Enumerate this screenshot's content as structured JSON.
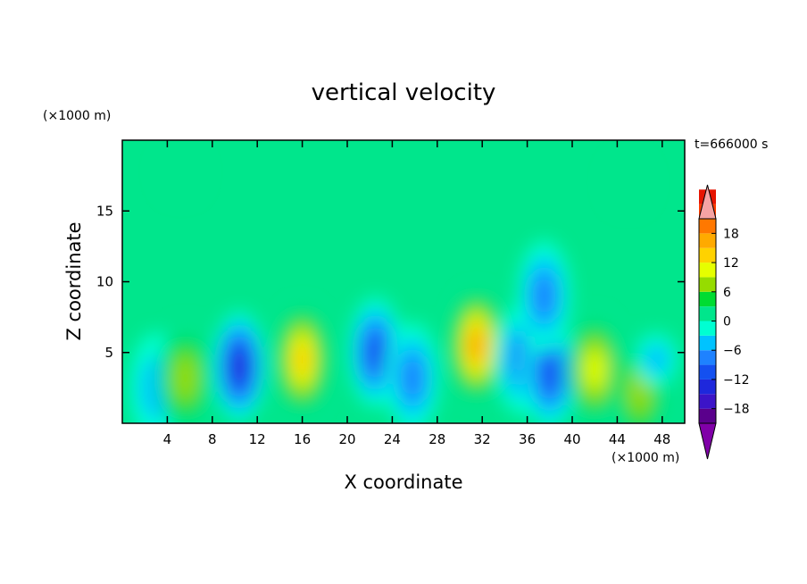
{
  "chart_data": {
    "type": "heatmap",
    "title": "vertical velocity",
    "xlabel": "X coordinate",
    "ylabel": "Z coordinate",
    "x_unit": "(×1000 m)",
    "y_unit": "(×1000 m)",
    "time_label": "t=666000 s",
    "xlim": [
      0,
      50
    ],
    "ylim": [
      0,
      20
    ],
    "x_ticks": [
      4,
      8,
      12,
      16,
      20,
      24,
      28,
      32,
      36,
      40,
      44,
      48
    ],
    "y_ticks": [
      5,
      10,
      15
    ],
    "colorbar": {
      "min": -21,
      "max": 21,
      "step": 3,
      "tick_values": [
        18,
        12,
        6,
        0,
        -6,
        -12,
        -18
      ],
      "tick_labels": [
        "18",
        "12",
        "6",
        "0",
        "−6",
        "−12",
        "−18"
      ],
      "colors_low_to_high": [
        "#5a008c",
        "#3c14c8",
        "#1e28dc",
        "#1450f0",
        "#1e82ff",
        "#00c3ff",
        "#00ffd2",
        "#00e68c",
        "#00dc32",
        "#96dc00",
        "#e6ff00",
        "#ffd200",
        "#ffaa00",
        "#ff7800",
        "#ff3c00",
        "#e61400"
      ],
      "under_color": "#8000a8",
      "over_color": "#f5a3a3"
    },
    "features": [
      {
        "x": 3.0,
        "z": 2.5,
        "value": -7
      },
      {
        "x": 5.6,
        "z": 3.2,
        "value": 10
      },
      {
        "x": 10.4,
        "z": 4.0,
        "value": -14
      },
      {
        "x": 16.0,
        "z": 4.5,
        "value": 16
      },
      {
        "x": 22.5,
        "z": 5.0,
        "value": -12
      },
      {
        "x": 25.8,
        "z": 3.2,
        "value": -8
      },
      {
        "x": 31.5,
        "z": 5.5,
        "value": 17
      },
      {
        "x": 35.5,
        "z": 4.5,
        "value": -9
      },
      {
        "x": 38.0,
        "z": 3.5,
        "value": -11
      },
      {
        "x": 37.5,
        "z": 9.0,
        "value": -8
      },
      {
        "x": 42.0,
        "z": 3.8,
        "value": 11
      },
      {
        "x": 46.0,
        "z": 2.3,
        "value": 10
      },
      {
        "x": 47.5,
        "z": 4.5,
        "value": -5
      },
      {
        "x": 5.2,
        "z": 17.8,
        "value": 4
      },
      {
        "x": 45.0,
        "z": 17.0,
        "value": 3
      }
    ]
  }
}
